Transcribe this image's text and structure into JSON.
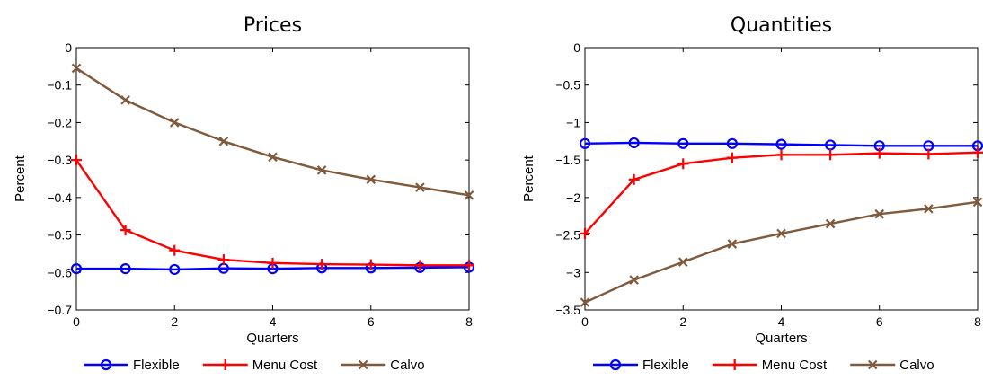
{
  "chart_data": [
    {
      "type": "line",
      "title": "Prices",
      "xlabel": "Quarters",
      "ylabel": "Percent",
      "xlim": [
        0,
        8
      ],
      "ylim": [
        -0.7,
        0
      ],
      "xticks": [
        0,
        2,
        4,
        6,
        8
      ],
      "xtick_labels": [
        "0",
        "2",
        "4",
        "6",
        "8"
      ],
      "yticks": [
        0,
        -0.1,
        -0.2,
        -0.3,
        -0.4,
        -0.5,
        -0.6,
        -0.7
      ],
      "ytick_labels": [
        "0",
        "−0.1",
        "−0.2",
        "−0.3",
        "−0.4",
        "−0.5",
        "−0.6",
        "−0.7"
      ],
      "grid": false,
      "legend_position": "bottom",
      "x": [
        0,
        1,
        2,
        3,
        4,
        5,
        6,
        7,
        8
      ],
      "series": [
        {
          "name": "Flexible",
          "color": "#0000ff",
          "marker": "circle",
          "values": [
            -0.59,
            -0.59,
            -0.592,
            -0.589,
            -0.59,
            -0.588,
            -0.588,
            -0.587,
            -0.586
          ]
        },
        {
          "name": "Menu Cost",
          "color": "#ff0000",
          "marker": "plus",
          "values": [
            -0.3,
            -0.487,
            -0.541,
            -0.566,
            -0.575,
            -0.578,
            -0.579,
            -0.581,
            -0.581
          ]
        },
        {
          "name": "Calvo",
          "color": "#7f5a3c",
          "marker": "x",
          "values": [
            -0.055,
            -0.14,
            -0.2,
            -0.25,
            -0.292,
            -0.327,
            -0.352,
            -0.373,
            -0.394
          ]
        }
      ]
    },
    {
      "type": "line",
      "title": "Quantities",
      "xlabel": "Quarters",
      "ylabel": "Percent",
      "xlim": [
        0,
        8
      ],
      "ylim": [
        -3.5,
        0
      ],
      "xticks": [
        0,
        2,
        4,
        6,
        8
      ],
      "xtick_labels": [
        "0",
        "2",
        "4",
        "6",
        "8"
      ],
      "yticks": [
        0,
        -0.5,
        -1,
        -1.5,
        -2,
        -2.5,
        -3,
        -3.5
      ],
      "ytick_labels": [
        "0",
        "−0.5",
        "−1",
        "−1.5",
        "−2",
        "−2.5",
        "−3",
        "−3.5"
      ],
      "grid": false,
      "legend_position": "bottom",
      "x": [
        0,
        1,
        2,
        3,
        4,
        5,
        6,
        7,
        8
      ],
      "series": [
        {
          "name": "Flexible",
          "color": "#0000ff",
          "marker": "circle",
          "values": [
            -1.28,
            -1.27,
            -1.28,
            -1.28,
            -1.29,
            -1.3,
            -1.31,
            -1.31,
            -1.31
          ]
        },
        {
          "name": "Menu Cost",
          "color": "#ff0000",
          "marker": "plus",
          "values": [
            -2.48,
            -1.76,
            -1.55,
            -1.47,
            -1.43,
            -1.43,
            -1.41,
            -1.42,
            -1.4
          ]
        },
        {
          "name": "Calvo",
          "color": "#7f5a3c",
          "marker": "x",
          "values": [
            -3.4,
            -3.1,
            -2.86,
            -2.62,
            -2.48,
            -2.35,
            -2.22,
            -2.15,
            -2.06
          ]
        }
      ]
    }
  ]
}
